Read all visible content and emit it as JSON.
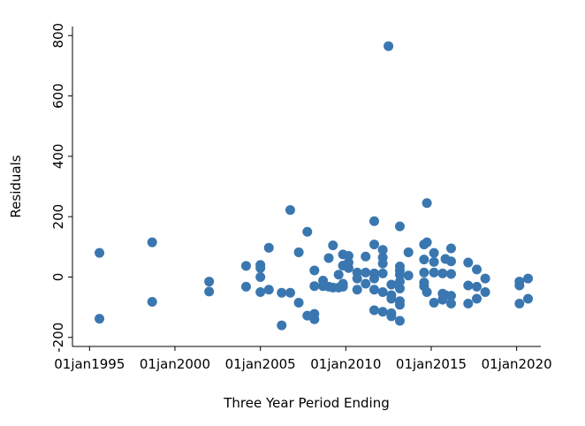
{
  "chart_data": {
    "type": "scatter",
    "title": "",
    "xlabel": "Three Year Period Ending",
    "ylabel": "Residuals",
    "x_is_date": true,
    "xlim": [
      "1994-01-01",
      "2021-06-01"
    ],
    "ylim": [
      -230,
      830
    ],
    "x_ticks": [
      {
        "value": "1995-01-01",
        "label": "01jan1995"
      },
      {
        "value": "2000-01-01",
        "label": "01jan2000"
      },
      {
        "value": "2005-01-01",
        "label": "01jan2005"
      },
      {
        "value": "2010-01-01",
        "label": "01jan2010"
      },
      {
        "value": "2015-01-01",
        "label": "01jan2015"
      },
      {
        "value": "2020-01-01",
        "label": "01jan2020"
      }
    ],
    "y_ticks": [
      {
        "value": -200,
        "label": "-200"
      },
      {
        "value": 0,
        "label": "0"
      },
      {
        "value": 200,
        "label": "200"
      },
      {
        "value": 400,
        "label": "400"
      },
      {
        "value": 600,
        "label": "600"
      },
      {
        "value": 800,
        "label": "800"
      }
    ],
    "grid": false,
    "marker_color": "#3a77b0",
    "points": [
      {
        "x": "1995-08-01",
        "y": 80
      },
      {
        "x": "1995-08-01",
        "y": -138
      },
      {
        "x": "1998-09-01",
        "y": 115
      },
      {
        "x": "1998-09-01",
        "y": -82
      },
      {
        "x": "2002-01-01",
        "y": -15
      },
      {
        "x": "2002-01-01",
        "y": -48
      },
      {
        "x": "2004-03-01",
        "y": 37
      },
      {
        "x": "2004-03-01",
        "y": -32
      },
      {
        "x": "2005-01-01",
        "y": 40
      },
      {
        "x": "2005-01-01",
        "y": 30
      },
      {
        "x": "2005-01-01",
        "y": 0
      },
      {
        "x": "2005-01-01",
        "y": -50
      },
      {
        "x": "2005-07-01",
        "y": 97
      },
      {
        "x": "2005-07-01",
        "y": -42
      },
      {
        "x": "2006-04-01",
        "y": -160
      },
      {
        "x": "2006-04-01",
        "y": -52
      },
      {
        "x": "2006-10-01",
        "y": 222
      },
      {
        "x": "2006-10-01",
        "y": -52
      },
      {
        "x": "2007-04-01",
        "y": 82
      },
      {
        "x": "2007-04-01",
        "y": -85
      },
      {
        "x": "2007-10-01",
        "y": 150
      },
      {
        "x": "2007-10-01",
        "y": -128
      },
      {
        "x": "2008-03-01",
        "y": 22
      },
      {
        "x": "2008-03-01",
        "y": -30
      },
      {
        "x": "2008-03-01",
        "y": -122
      },
      {
        "x": "2008-03-01",
        "y": -140
      },
      {
        "x": "2008-09-01",
        "y": -12
      },
      {
        "x": "2008-09-01",
        "y": -30
      },
      {
        "x": "2009-01-01",
        "y": 63
      },
      {
        "x": "2009-01-01",
        "y": -32
      },
      {
        "x": "2009-04-01",
        "y": 105
      },
      {
        "x": "2009-04-01",
        "y": -35
      },
      {
        "x": "2009-08-01",
        "y": 8
      },
      {
        "x": "2009-08-01",
        "y": -35
      },
      {
        "x": "2009-11-01",
        "y": 75
      },
      {
        "x": "2009-11-01",
        "y": 38
      },
      {
        "x": "2009-11-01",
        "y": -22
      },
      {
        "x": "2009-11-01",
        "y": -32
      },
      {
        "x": "2010-03-01",
        "y": 70
      },
      {
        "x": "2010-03-01",
        "y": 48
      },
      {
        "x": "2010-03-01",
        "y": 30
      },
      {
        "x": "2010-09-01",
        "y": 15
      },
      {
        "x": "2010-09-01",
        "y": -5
      },
      {
        "x": "2010-09-01",
        "y": -42
      },
      {
        "x": "2011-03-01",
        "y": 68
      },
      {
        "x": "2011-03-01",
        "y": 15
      },
      {
        "x": "2011-03-01",
        "y": -22
      },
      {
        "x": "2011-09-01",
        "y": 185
      },
      {
        "x": "2011-09-01",
        "y": 108
      },
      {
        "x": "2011-09-01",
        "y": 12
      },
      {
        "x": "2011-09-01",
        "y": -5
      },
      {
        "x": "2011-09-01",
        "y": -42
      },
      {
        "x": "2011-09-01",
        "y": -110
      },
      {
        "x": "2012-03-01",
        "y": 90
      },
      {
        "x": "2012-03-01",
        "y": 65
      },
      {
        "x": "2012-03-01",
        "y": 45
      },
      {
        "x": "2012-03-01",
        "y": 12
      },
      {
        "x": "2012-03-01",
        "y": -50
      },
      {
        "x": "2012-03-01",
        "y": -115
      },
      {
        "x": "2012-07-01",
        "y": 765
      },
      {
        "x": "2012-09-01",
        "y": -25
      },
      {
        "x": "2012-09-01",
        "y": -60
      },
      {
        "x": "2012-09-01",
        "y": -72
      },
      {
        "x": "2012-09-01",
        "y": -120
      },
      {
        "x": "2012-09-01",
        "y": -130
      },
      {
        "x": "2013-03-01",
        "y": 168
      },
      {
        "x": "2013-03-01",
        "y": 35
      },
      {
        "x": "2013-03-01",
        "y": 22
      },
      {
        "x": "2013-03-01",
        "y": 8
      },
      {
        "x": "2013-03-01",
        "y": -15
      },
      {
        "x": "2013-03-01",
        "y": -38
      },
      {
        "x": "2013-03-01",
        "y": -80
      },
      {
        "x": "2013-03-01",
        "y": -92
      },
      {
        "x": "2013-03-01",
        "y": -145
      },
      {
        "x": "2013-09-01",
        "y": 82
      },
      {
        "x": "2013-09-01",
        "y": 5
      },
      {
        "x": "2014-08-01",
        "y": 108
      },
      {
        "x": "2014-08-01",
        "y": 58
      },
      {
        "x": "2014-08-01",
        "y": 15
      },
      {
        "x": "2014-08-01",
        "y": -18
      },
      {
        "x": "2014-08-01",
        "y": -30
      },
      {
        "x": "2014-10-01",
        "y": 245
      },
      {
        "x": "2014-10-01",
        "y": 115
      },
      {
        "x": "2014-10-01",
        "y": -50
      },
      {
        "x": "2015-03-01",
        "y": 80
      },
      {
        "x": "2015-03-01",
        "y": 50
      },
      {
        "x": "2015-03-01",
        "y": 15
      },
      {
        "x": "2015-03-01",
        "y": -85
      },
      {
        "x": "2015-09-01",
        "y": 12
      },
      {
        "x": "2015-09-01",
        "y": -55
      },
      {
        "x": "2015-09-01",
        "y": -75
      },
      {
        "x": "2015-11-01",
        "y": 60
      },
      {
        "x": "2015-11-01",
        "y": -60
      },
      {
        "x": "2016-03-01",
        "y": 95
      },
      {
        "x": "2016-03-01",
        "y": 52
      },
      {
        "x": "2016-03-01",
        "y": 10
      },
      {
        "x": "2016-03-01",
        "y": -62
      },
      {
        "x": "2016-03-01",
        "y": -88
      },
      {
        "x": "2017-03-01",
        "y": 48
      },
      {
        "x": "2017-03-01",
        "y": -28
      },
      {
        "x": "2017-03-01",
        "y": -88
      },
      {
        "x": "2017-09-01",
        "y": 25
      },
      {
        "x": "2017-09-01",
        "y": -32
      },
      {
        "x": "2017-09-01",
        "y": -72
      },
      {
        "x": "2018-03-01",
        "y": -5
      },
      {
        "x": "2018-03-01",
        "y": -50
      },
      {
        "x": "2020-03-01",
        "y": -15
      },
      {
        "x": "2020-03-01",
        "y": -28
      },
      {
        "x": "2020-03-01",
        "y": -88
      },
      {
        "x": "2020-09-01",
        "y": -5
      },
      {
        "x": "2020-09-01",
        "y": -72
      }
    ]
  }
}
